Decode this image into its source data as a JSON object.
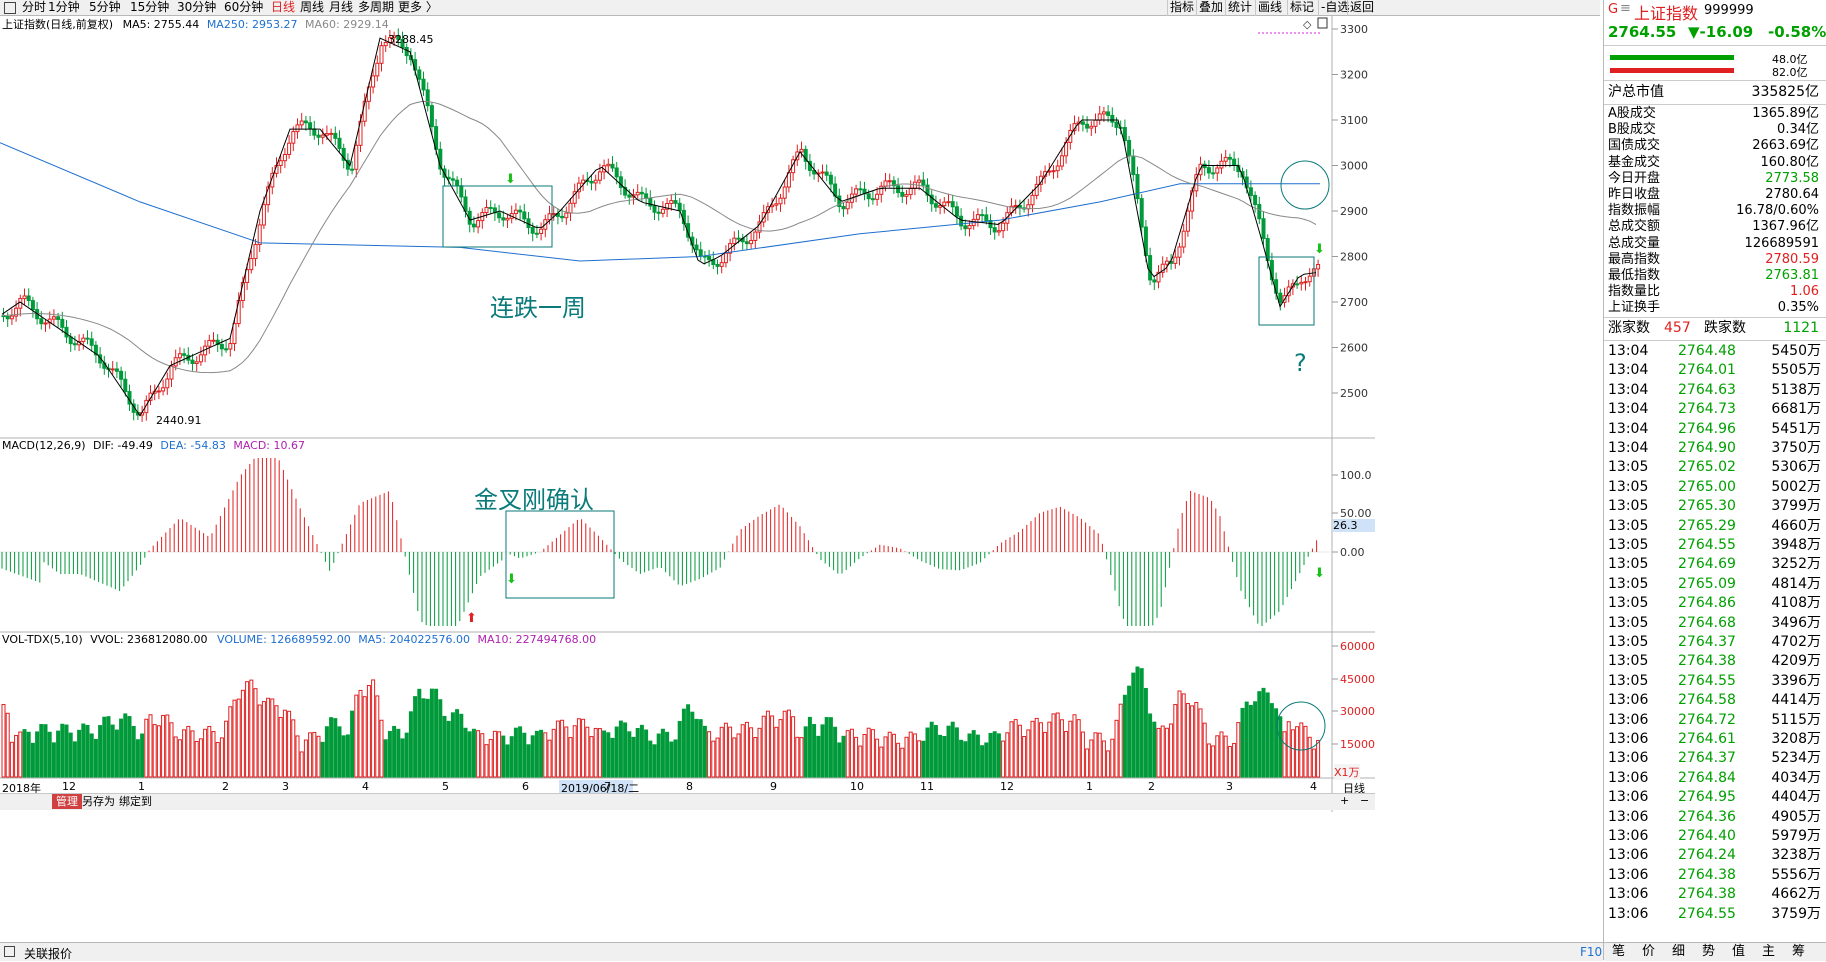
{
  "toolbar": {
    "periods": [
      "分时",
      "1分钟",
      "5分钟",
      "15分钟",
      "30分钟",
      "60分钟",
      "日线",
      "周线",
      "月线",
      "多周期",
      "更多 〉"
    ],
    "active_period": "日线",
    "tools": [
      "指标",
      "叠加",
      "统计",
      "画线",
      "标记",
      "-自选",
      "返回"
    ]
  },
  "main_panel": {
    "title": "上证指数(日线,前复权)",
    "ma5": "MA5: 2755.44",
    "ma250": "MA250: 2953.27",
    "ma60": "MA60: 2929.14",
    "y_ticks": [
      "3300",
      "3200",
      "3100",
      "3000",
      "2900",
      "2800",
      "2700",
      "2600",
      "2500"
    ],
    "high_label": "3288.45",
    "low_label": "2440.91",
    "annotation_1": "连跌一周",
    "annotation_q": "?"
  },
  "macd_panel": {
    "title": "MACD(12,26,9)",
    "dif": "DIF: -49.49",
    "dea": "DEA: -54.83",
    "macd": "MACD: 10.67",
    "y_ticks": [
      "100.0",
      "50.00",
      "0.00"
    ],
    "current_tag": "26.3",
    "annotation": "金叉刚确认"
  },
  "vol_panel": {
    "title": "VOL-TDX(5,10)",
    "vvol": "VVOL: 236812080.00",
    "volume": "VOLUME: 126689592.00",
    "ma5": "MA5: 204022576.00",
    "ma10": "MA10: 227494768.00",
    "y_ticks": [
      "60000",
      "45000",
      "30000",
      "15000"
    ],
    "unit": "X1万"
  },
  "x_axis": {
    "labels": [
      "2018年",
      "12",
      "1",
      "2",
      "3",
      "4",
      "5",
      "6",
      "7",
      "8",
      "9",
      "10",
      "11",
      "12",
      "1",
      "2",
      "3",
      "4"
    ],
    "cursor_date": "2019/06/18/二",
    "right_label": "日线"
  },
  "bottom": {
    "tabs": [
      "管理",
      "另存为",
      "绑定到"
    ],
    "status": "关联报价",
    "f10": "F10"
  },
  "quote": {
    "name": "上证指数",
    "code": "999999",
    "price": "2764.55",
    "change": "▼-16.09",
    "pct": "-0.58%",
    "buy_amt": "48.0亿",
    "sell_amt": "82.0亿",
    "market_cap_label": "沪总市值",
    "market_cap": "335825亿",
    "stats": [
      {
        "k": "A股成交",
        "v": "1365.89亿"
      },
      {
        "k": "B股成交",
        "v": "0.34亿"
      },
      {
        "k": "国债成交",
        "v": "2663.69亿"
      },
      {
        "k": "基金成交",
        "v": "160.80亿"
      },
      {
        "k": "今日开盘",
        "v": "2773.58"
      },
      {
        "k": "昨日收盘",
        "v": "2780.64"
      },
      {
        "k": "指数振幅",
        "v": "16.78/0.60%"
      },
      {
        "k": "总成交额",
        "v": "1367.96亿"
      },
      {
        "k": "总成交量",
        "v": "126689591"
      },
      {
        "k": "最高指数",
        "v": "2780.59"
      },
      {
        "k": "最低指数",
        "v": "2763.81"
      },
      {
        "k": "指数量比",
        "v": "1.06"
      },
      {
        "k": "上证换手",
        "v": "0.35%"
      }
    ],
    "up_label": "涨家数",
    "up_count": "457",
    "down_label": "跌家数",
    "down_count": "1121"
  },
  "ticks": [
    [
      "13:04",
      "2764.48",
      "5450万"
    ],
    [
      "13:04",
      "2764.01",
      "5505万"
    ],
    [
      "13:04",
      "2764.63",
      "5138万"
    ],
    [
      "13:04",
      "2764.73",
      "6681万"
    ],
    [
      "13:04",
      "2764.96",
      "5451万"
    ],
    [
      "13:04",
      "2764.90",
      "3750万"
    ],
    [
      "13:05",
      "2765.02",
      "5306万"
    ],
    [
      "13:05",
      "2765.00",
      "5002万"
    ],
    [
      "13:05",
      "2765.30",
      "3799万"
    ],
    [
      "13:05",
      "2765.29",
      "4660万"
    ],
    [
      "13:05",
      "2764.55",
      "3948万"
    ],
    [
      "13:05",
      "2764.69",
      "3252万"
    ],
    [
      "13:05",
      "2765.09",
      "4814万"
    ],
    [
      "13:05",
      "2764.86",
      "4108万"
    ],
    [
      "13:05",
      "2764.68",
      "3496万"
    ],
    [
      "13:05",
      "2764.37",
      "4702万"
    ],
    [
      "13:05",
      "2764.38",
      "4209万"
    ],
    [
      "13:05",
      "2764.55",
      "3396万"
    ],
    [
      "13:06",
      "2764.58",
      "4414万"
    ],
    [
      "13:06",
      "2764.72",
      "5115万"
    ],
    [
      "13:06",
      "2764.61",
      "3208万"
    ],
    [
      "13:06",
      "2764.37",
      "5234万"
    ],
    [
      "13:06",
      "2764.84",
      "4034万"
    ],
    [
      "13:06",
      "2764.95",
      "4404万"
    ],
    [
      "13:06",
      "2764.36",
      "4905万"
    ],
    [
      "13:06",
      "2764.40",
      "5979万"
    ],
    [
      "13:06",
      "2764.24",
      "3238万"
    ],
    [
      "13:06",
      "2764.38",
      "5556万"
    ],
    [
      "13:06",
      "2764.38",
      "4662万"
    ],
    [
      "13:06",
      "2764.55",
      "3759万"
    ]
  ],
  "side_tabs": [
    "笔",
    "价",
    "细",
    "势",
    "值",
    "主",
    "筹"
  ],
  "colors": {
    "up": "#e02020",
    "down": "#009a3a",
    "annotation": "#0a7a7a",
    "ma250": "#1e6fd0",
    "ma60": "#888888",
    "ma5": "#000000"
  }
}
